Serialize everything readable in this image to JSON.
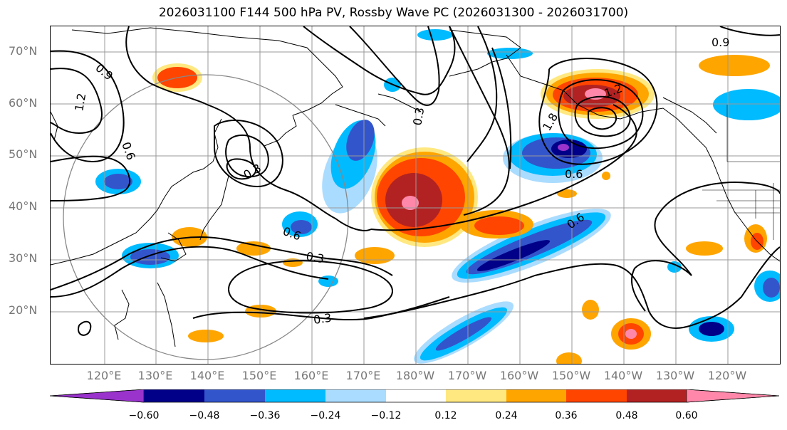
{
  "title": "2026031100 F144 500 hPa PV, Rossby Wave PC (2026031300 - 2026031700)",
  "lat_labels": [
    "70°N",
    "60°N",
    "50°N",
    "40°N",
    "30°N",
    "20°N"
  ],
  "lon_labels": [
    "120°E",
    "130°E",
    "140°E",
    "150°E",
    "160°E",
    "170°E",
    "180°W",
    "170°W",
    "160°W",
    "150°W",
    "140°W",
    "130°W",
    "120°W"
  ],
  "contour_labels": [
    "0.9",
    "1.2",
    "0.6",
    "0.3",
    "0.6",
    "0.3",
    "0.3",
    "0.6",
    "0.6",
    "0.9",
    "1.2",
    "1.8",
    "0.3"
  ],
  "colorbar": {
    "tick_labels": [
      "−0.60",
      "−0.48",
      "−0.36",
      "−0.24",
      "−0.12",
      "0.12",
      "0.24",
      "0.36",
      "0.48",
      "0.60"
    ],
    "colors": [
      "#9933cc",
      "#000088",
      "#3355cc",
      "#00bbff",
      "#aadcff",
      "#ffffff",
      "#ffe880",
      "#ffa500",
      "#ff4500",
      "#b22222",
      "#ff88aa"
    ]
  },
  "colors": {
    "neg_strong": "#000088",
    "neg_med": "#3355cc",
    "neg_light": "#00bbff",
    "neg_pale": "#aadcff",
    "pos_pale": "#ffe880",
    "pos_light": "#ffa500",
    "pos_med": "#ff4500",
    "pos_strong": "#b22222",
    "pos_max": "#ff88aa",
    "grid": "#999999",
    "contour": "#000000"
  }
}
